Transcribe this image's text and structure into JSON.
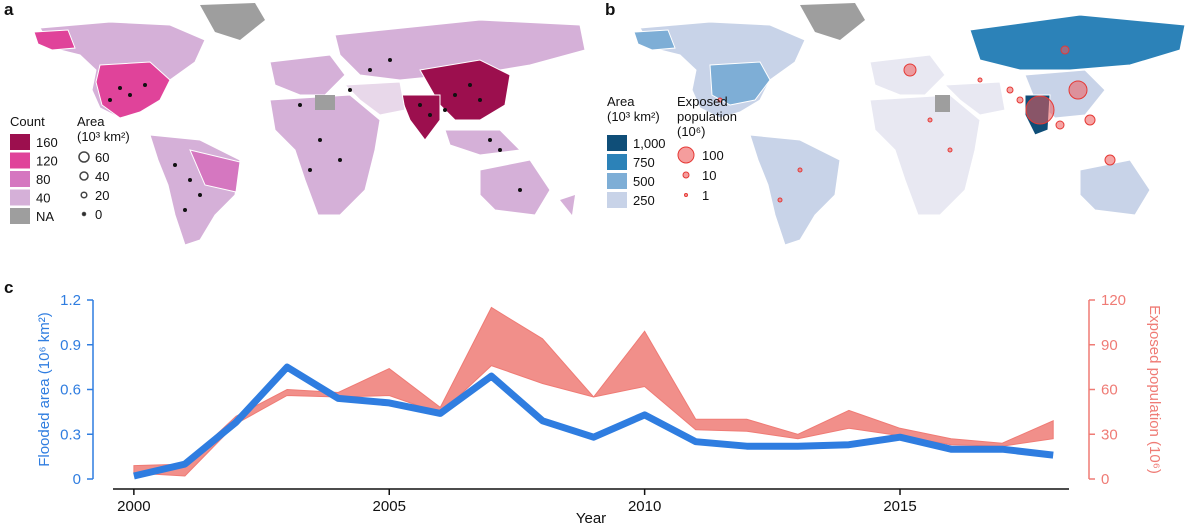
{
  "panels": {
    "a": "a",
    "b": "b",
    "c": "c"
  },
  "map_a": {
    "count_legend": {
      "title": "Count",
      "items": [
        "160",
        "120",
        "80",
        "40",
        "NA"
      ],
      "colors": [
        "#9c0f4e",
        "#e0439a",
        "#d577c0",
        "#d5b0d8",
        "#9e9e9e"
      ]
    },
    "area_legend": {
      "title": "Area",
      "unit": "(10³ km²)",
      "items": [
        "60",
        "40",
        "20",
        "0"
      ]
    }
  },
  "map_b": {
    "area_legend": {
      "title": "Area",
      "unit": "(10³ km²)",
      "items": [
        "1,000",
        "750",
        "500",
        "250"
      ],
      "colors": [
        "#0f4e78",
        "#2c82b8",
        "#7eaed6",
        "#c8d3e8"
      ]
    },
    "pop_legend": {
      "title_line1": "Exposed",
      "title_line2": "population",
      "unit": "(10⁶)",
      "items": [
        "100",
        "10",
        "1"
      ]
    }
  },
  "chart_data": {
    "type": "line",
    "x": [
      2000,
      2001,
      2002,
      2003,
      2004,
      2005,
      2006,
      2007,
      2008,
      2009,
      2010,
      2011,
      2012,
      2013,
      2014,
      2015,
      2016,
      2017,
      2018
    ],
    "series": [
      {
        "name": "Flooded area",
        "axis": "left",
        "color": "#2f7de0",
        "values": [
          0.02,
          0.1,
          0.38,
          0.75,
          0.54,
          0.51,
          0.44,
          0.69,
          0.39,
          0.28,
          0.43,
          0.25,
          0.22,
          0.22,
          0.23,
          0.28,
          0.2,
          0.2,
          0.16
        ]
      },
      {
        "name": "Exposed population",
        "axis": "right",
        "color": "#ef7b75",
        "type": "band",
        "lower": [
          4,
          2,
          37,
          56,
          55,
          56,
          44,
          76,
          64,
          55,
          62,
          33,
          32,
          27,
          34,
          29,
          23,
          22,
          27
        ],
        "upper": [
          9,
          10,
          42,
          60,
          58,
          74,
          48,
          115,
          94,
          55,
          99,
          40,
          40,
          30,
          46,
          34,
          27,
          24,
          39
        ]
      }
    ],
    "xlabel": "Year",
    "ylabel_left": "Flooded area (10⁶ km²)",
    "ylabel_right": "Exposed population (10⁶)",
    "xticks": [
      "2000",
      "2005",
      "2010",
      "2015"
    ],
    "yticks_left": [
      "0",
      "0.3",
      "0.6",
      "0.9",
      "1.2"
    ],
    "yticks_right": [
      "0",
      "30",
      "60",
      "90",
      "120"
    ],
    "ylim_left": [
      0,
      1.2
    ],
    "ylim_right": [
      0,
      120
    ],
    "xlim": [
      1999.2,
      2018.7
    ]
  }
}
